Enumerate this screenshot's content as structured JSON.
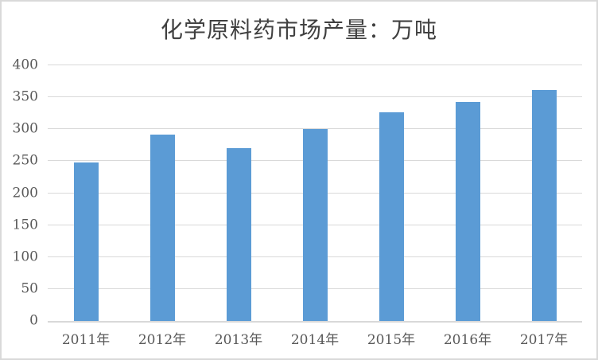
{
  "chart_data": {
    "type": "bar",
    "title": "化学原料药市场产量：万吨",
    "categories": [
      "2011年",
      "2012年",
      "2013年",
      "2014年",
      "2015年",
      "2016年",
      "2017年"
    ],
    "values": [
      248,
      292,
      271,
      300,
      326,
      343,
      362
    ],
    "xlabel": "",
    "ylabel": "",
    "ylim": [
      0,
      400
    ],
    "yticks": [
      0,
      50,
      100,
      150,
      200,
      250,
      300,
      350,
      400
    ],
    "grid": true,
    "legend": "none",
    "bar_color": "#5b9bd5",
    "gridline_color": "#d9d9d9",
    "axis_label_color": "#595959",
    "title_color": "#404040",
    "frame_border_color": "#d9d9d9"
  }
}
